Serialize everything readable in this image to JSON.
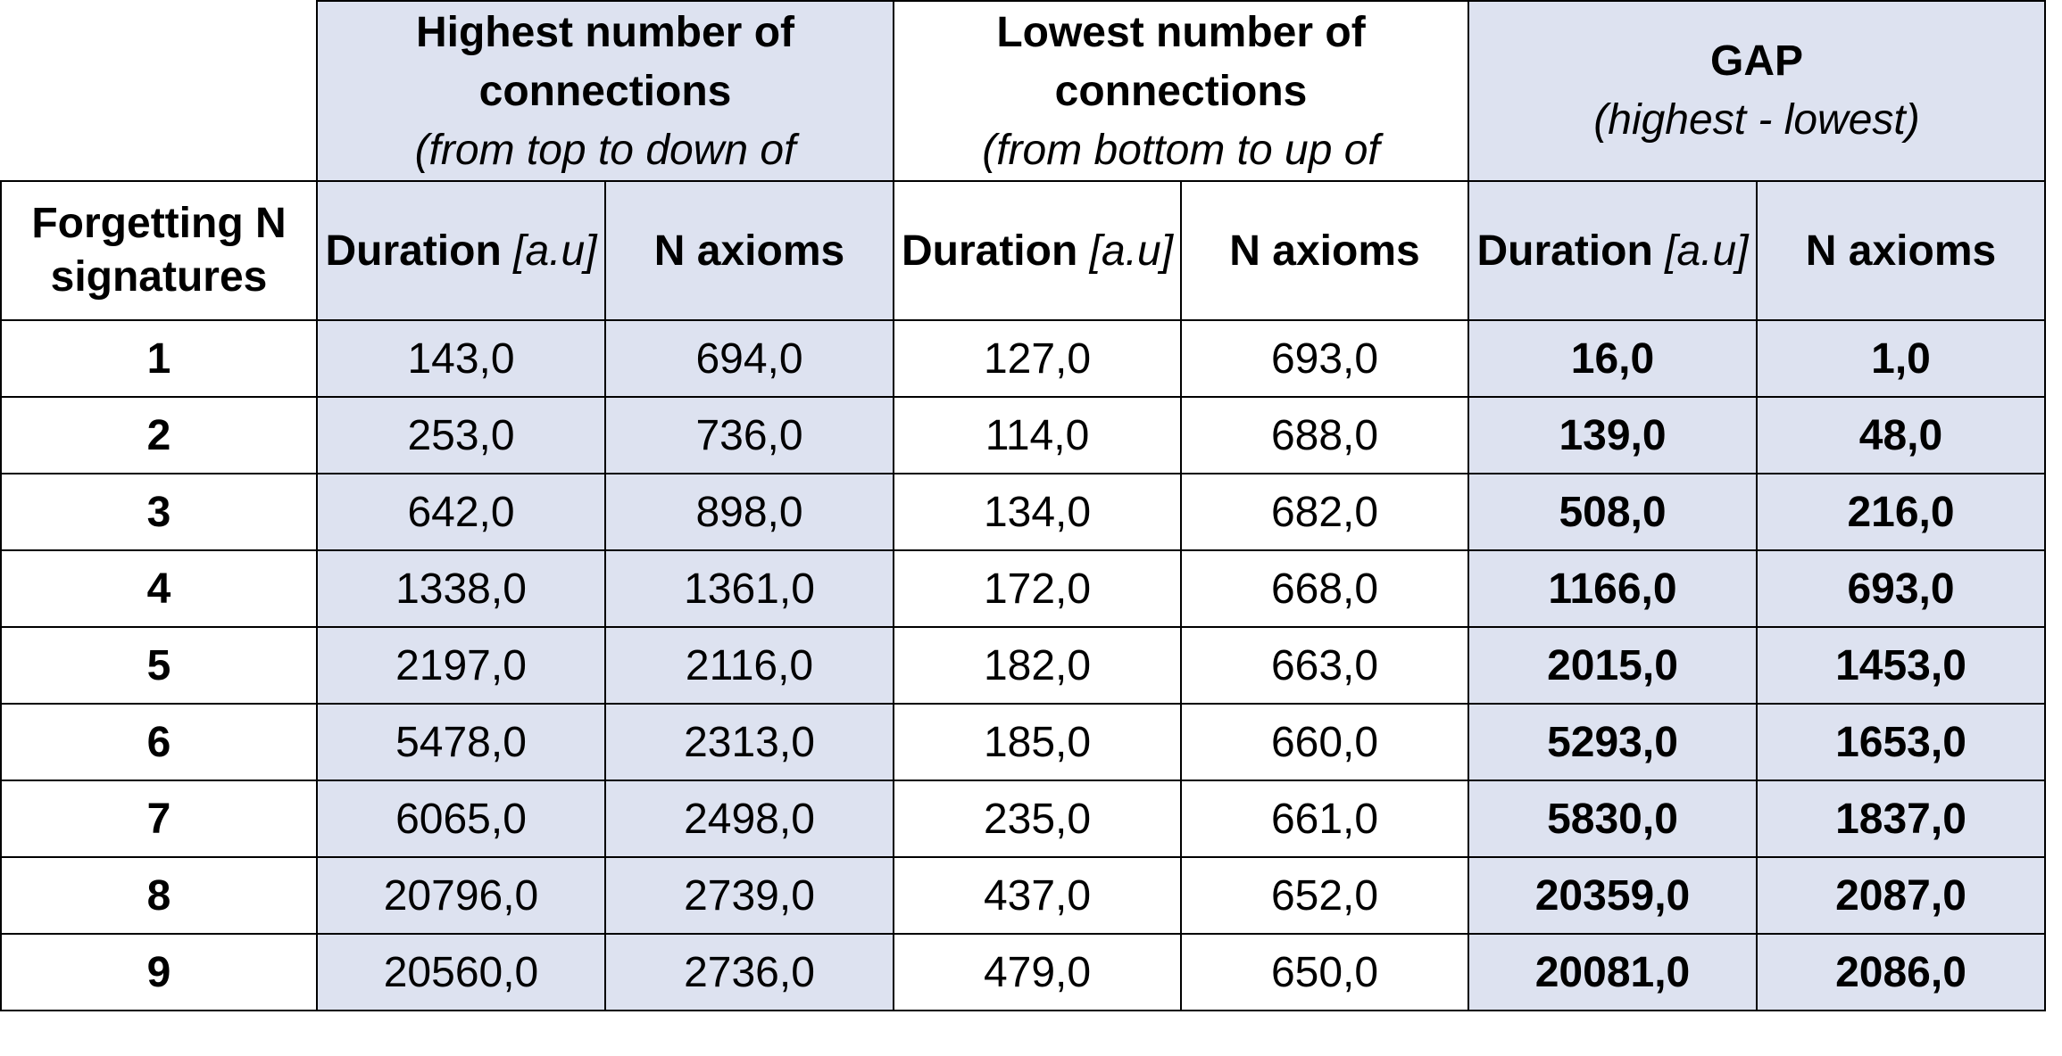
{
  "header": {
    "groups": [
      {
        "title": "Highest number of connections",
        "subtitle": "(from top to down of"
      },
      {
        "title": "Lowest number of connections",
        "subtitle": "(from bottom to up of"
      },
      {
        "title": "GAP",
        "subtitle": "(highest - lowest)"
      }
    ],
    "row_label": "Forgetting N signatures",
    "duration_label": "Duration",
    "duration_unit": "[a.u]",
    "axioms_label": "N axioms"
  },
  "rows": [
    {
      "n": "1",
      "hi_dur": "143,0",
      "hi_ax": "694,0",
      "lo_dur": "127,0",
      "lo_ax": "693,0",
      "gap_dur": "16,0",
      "gap_ax": "1,0"
    },
    {
      "n": "2",
      "hi_dur": "253,0",
      "hi_ax": "736,0",
      "lo_dur": "114,0",
      "lo_ax": "688,0",
      "gap_dur": "139,0",
      "gap_ax": "48,0"
    },
    {
      "n": "3",
      "hi_dur": "642,0",
      "hi_ax": "898,0",
      "lo_dur": "134,0",
      "lo_ax": "682,0",
      "gap_dur": "508,0",
      "gap_ax": "216,0"
    },
    {
      "n": "4",
      "hi_dur": "1338,0",
      "hi_ax": "1361,0",
      "lo_dur": "172,0",
      "lo_ax": "668,0",
      "gap_dur": "1166,0",
      "gap_ax": "693,0"
    },
    {
      "n": "5",
      "hi_dur": "2197,0",
      "hi_ax": "2116,0",
      "lo_dur": "182,0",
      "lo_ax": "663,0",
      "gap_dur": "2015,0",
      "gap_ax": "1453,0"
    },
    {
      "n": "6",
      "hi_dur": "5478,0",
      "hi_ax": "2313,0",
      "lo_dur": "185,0",
      "lo_ax": "660,0",
      "gap_dur": "5293,0",
      "gap_ax": "1653,0"
    },
    {
      "n": "7",
      "hi_dur": "6065,0",
      "hi_ax": "2498,0",
      "lo_dur": "235,0",
      "lo_ax": "661,0",
      "gap_dur": "5830,0",
      "gap_ax": "1837,0"
    },
    {
      "n": "8",
      "hi_dur": "20796,0",
      "hi_ax": "2739,0",
      "lo_dur": "437,0",
      "lo_ax": "652,0",
      "gap_dur": "20359,0",
      "gap_ax": "2087,0"
    },
    {
      "n": "9",
      "hi_dur": "20560,0",
      "hi_ax": "2736,0",
      "lo_dur": "479,0",
      "lo_ax": "650,0",
      "gap_dur": "20081,0",
      "gap_ax": "2086,0"
    }
  ]
}
